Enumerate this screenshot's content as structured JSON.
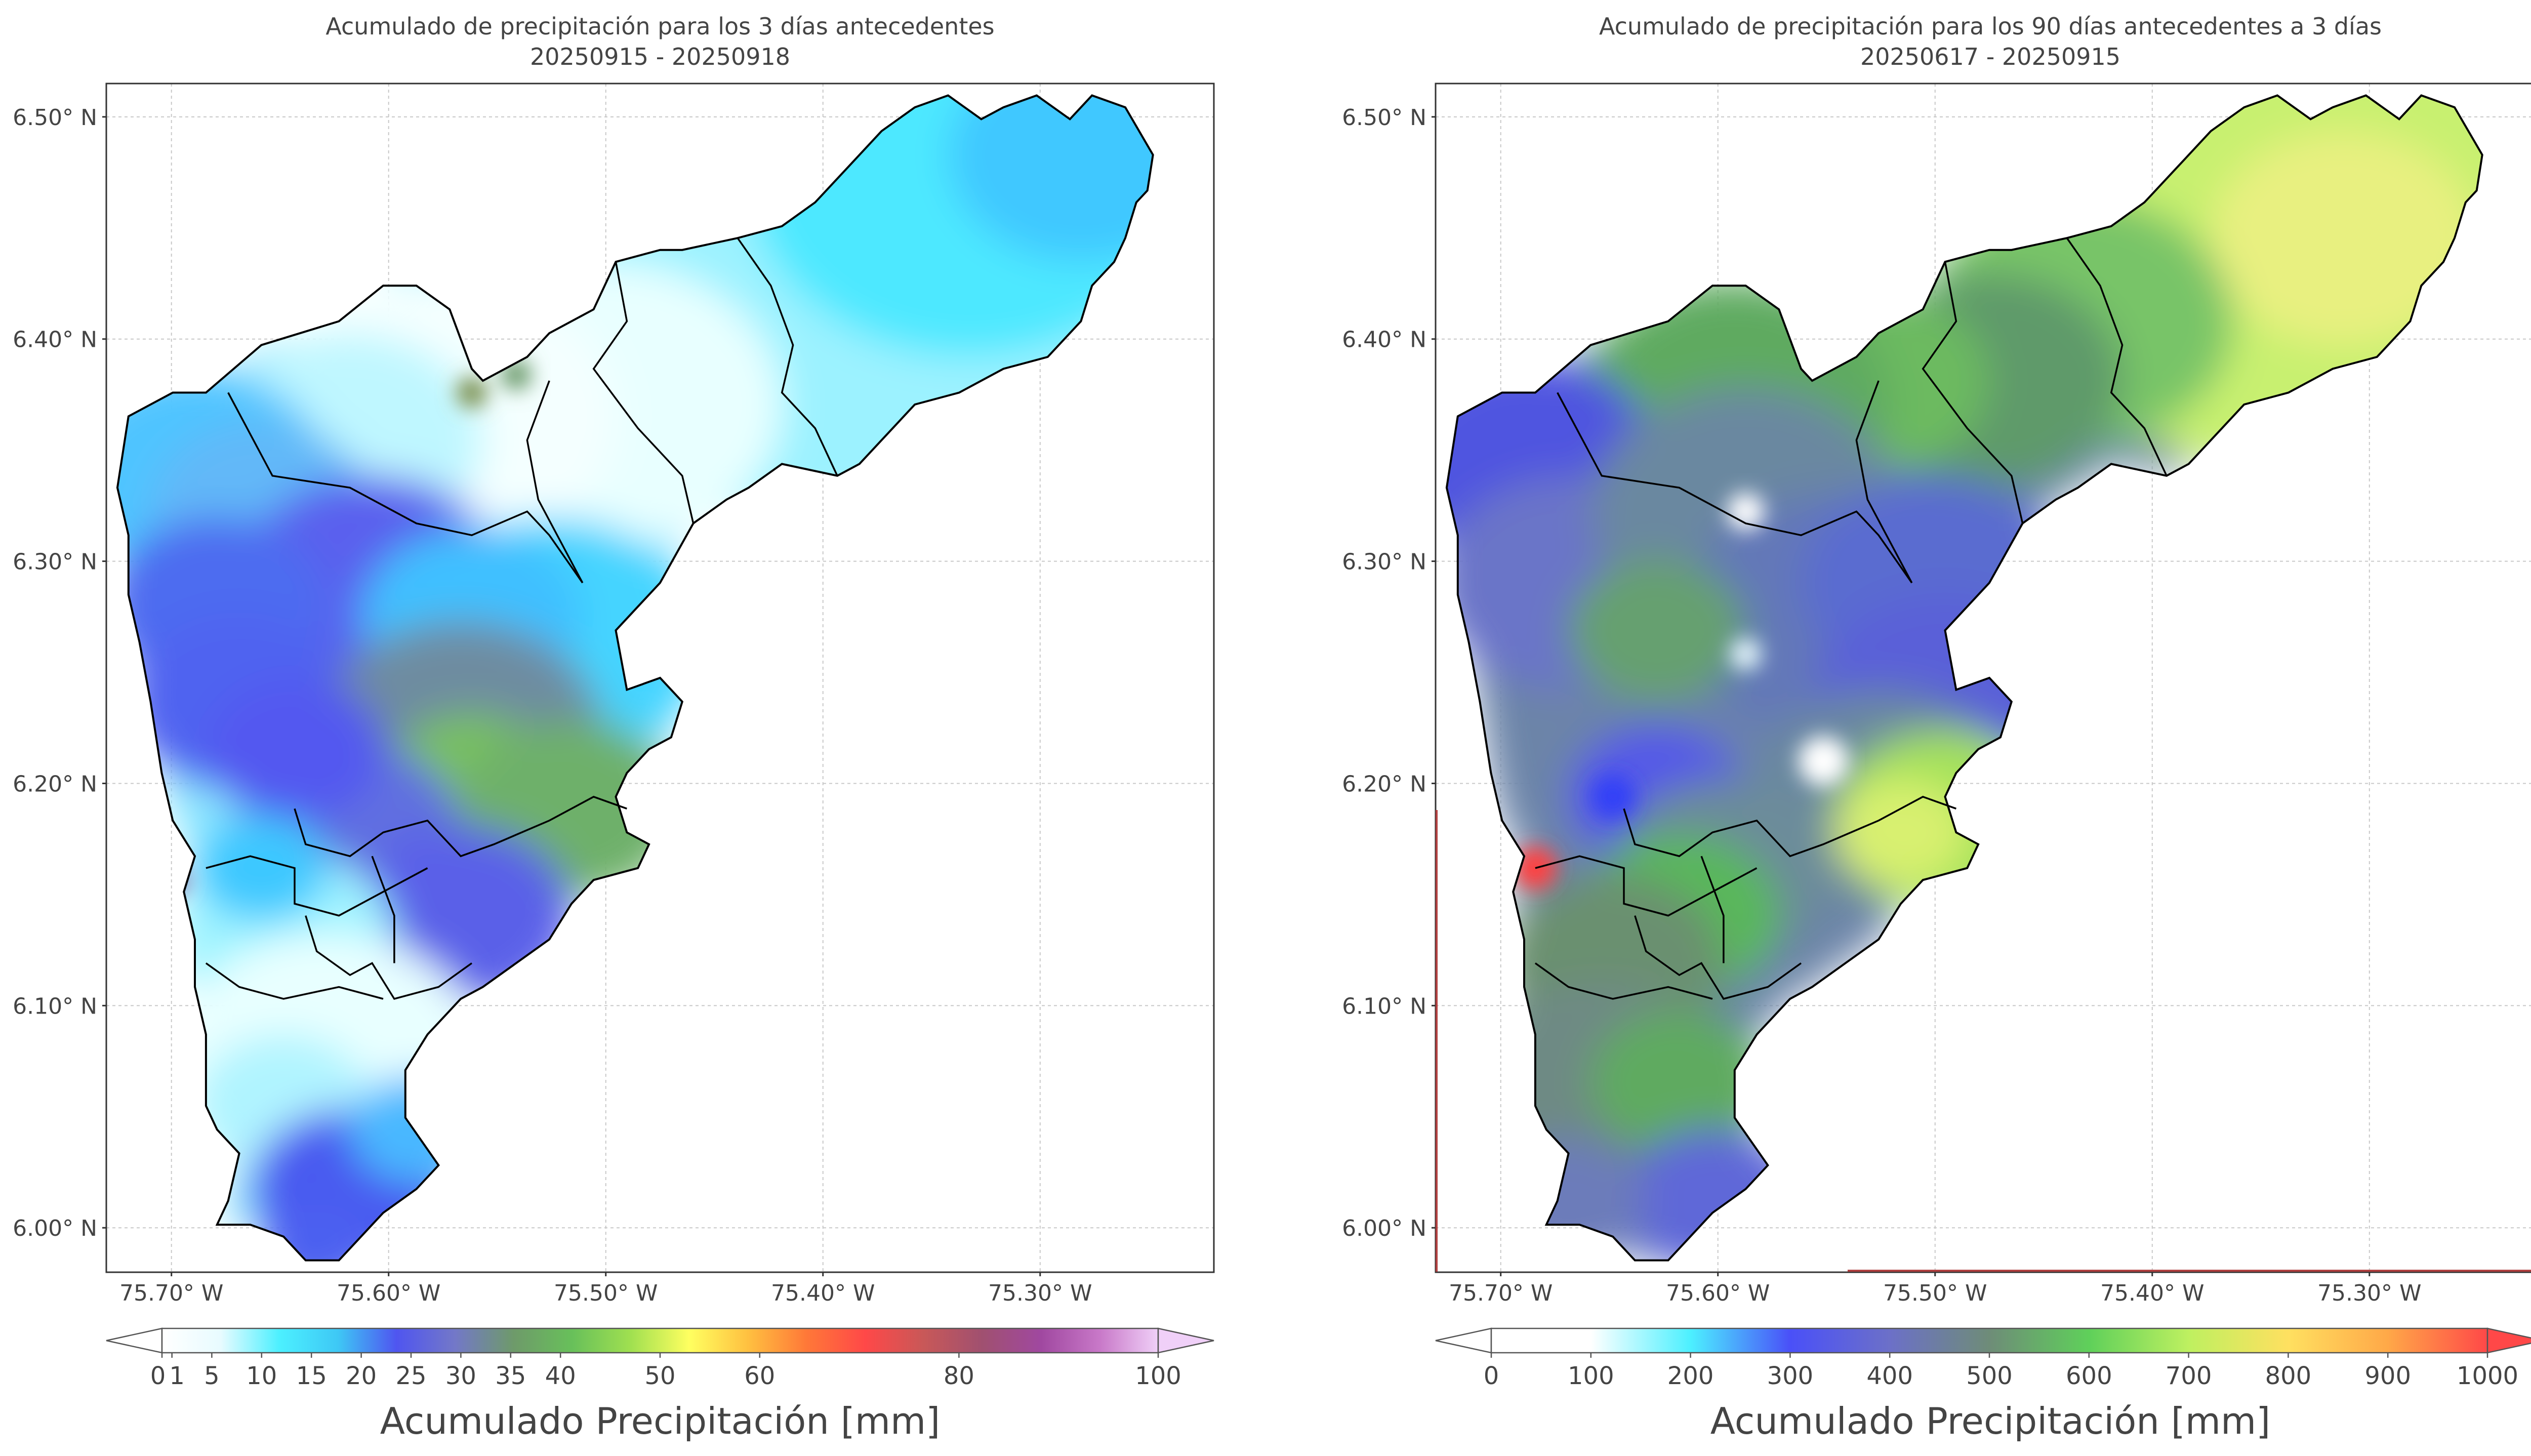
{
  "chart_data": [
    {
      "type": "heatmap",
      "title": "Acumulado de precipitación para los 3 días antecedentes",
      "subtitle": "20250915 - 20250918",
      "xlabel": "",
      "ylabel": "",
      "xlim": [
        -75.73,
        -75.22
      ],
      "ylim": [
        5.98,
        6.515
      ],
      "x_ticks": [
        -75.7,
        -75.6,
        -75.5,
        -75.4,
        -75.3
      ],
      "x_tick_labels": [
        "75.70° W",
        "75.60° W",
        "75.50° W",
        "75.40° W",
        "75.30° W"
      ],
      "y_ticks": [
        6.0,
        6.1,
        6.2,
        6.3,
        6.4,
        6.5
      ],
      "y_tick_labels": [
        "6.00° N",
        "6.10° N",
        "6.20° N",
        "6.30° N",
        "6.40° N",
        "6.50° N"
      ],
      "grid": true,
      "colorbar": {
        "label": "Acumulado Precipitación [mm]",
        "ticks": [
          0,
          1,
          5,
          10,
          15,
          20,
          25,
          30,
          35,
          40,
          50,
          60,
          80,
          100
        ],
        "tick_labels": [
          "0",
          "1",
          "5",
          "10",
          "15",
          "20",
          "25",
          "30",
          "35",
          "40",
          "50",
          "60",
          "80",
          "100"
        ],
        "extend": "both",
        "colors": [
          "#ffffff",
          "#e8fbff",
          "#4cf0ff",
          "#3ec8f5",
          "#4f55f0",
          "#7378c8",
          "#6e9a6a",
          "#68c05a",
          "#a0e050",
          "#ffff60",
          "#ffc040",
          "#ff7838",
          "#ff4848",
          "#c85858",
          "#a05070",
          "#a048a0",
          "#c878c8",
          "#f0d0f8"
        ]
      },
      "basin_values_mm": [
        {
          "zone": "northeast",
          "range": [
            2,
            6
          ]
        },
        {
          "zone": "north-central",
          "range": [
            0,
            4
          ]
        },
        {
          "zone": "west",
          "range": [
            8,
            14
          ]
        },
        {
          "zone": "central-south",
          "range": [
            18,
            24
          ]
        },
        {
          "zone": "south",
          "range": [
            1,
            6
          ]
        }
      ]
    },
    {
      "type": "heatmap",
      "title": "Acumulado de precipitación para los 90 días antecedentes a 3 días",
      "subtitle": "20250617 - 20250915",
      "xlabel": "",
      "ylabel": "",
      "xlim": [
        -75.73,
        -75.22
      ],
      "ylim": [
        5.98,
        6.515
      ],
      "x_ticks": [
        -75.7,
        -75.6,
        -75.5,
        -75.4,
        -75.3
      ],
      "x_tick_labels": [
        "75.70° W",
        "75.60° W",
        "75.50° W",
        "75.40° W",
        "75.30° W"
      ],
      "y_ticks": [
        6.0,
        6.1,
        6.2,
        6.3,
        6.4,
        6.5
      ],
      "y_tick_labels": [
        "6.00° N",
        "6.10° N",
        "6.20° N",
        "6.30° N",
        "6.40° N",
        "6.50° N"
      ],
      "grid": true,
      "colorbar": {
        "label": "Acumulado Precipitación [mm]",
        "ticks": [
          0,
          100,
          200,
          300,
          400,
          500,
          600,
          700,
          800,
          900,
          1000
        ],
        "tick_labels": [
          "0",
          "100",
          "200",
          "300",
          "400",
          "500",
          "600",
          "700",
          "800",
          "900",
          "1000"
        ],
        "extend": "both",
        "colors": [
          "#ffffff",
          "#ffffff",
          "#4cf0ff",
          "#4a50f8",
          "#6c70c8",
          "#6e8c78",
          "#5fd05a",
          "#bef060",
          "#ffe060",
          "#ffa848",
          "#ff4848"
        ]
      },
      "basin_values_mm": [
        {
          "zone": "northeast",
          "range": [
            620,
            700
          ]
        },
        {
          "zone": "north-central",
          "range": [
            480,
            560
          ]
        },
        {
          "zone": "west",
          "range": [
            380,
            460
          ]
        },
        {
          "zone": "central-south",
          "range": [
            450,
            650
          ]
        },
        {
          "zone": "south",
          "range": [
            420,
            520
          ]
        }
      ]
    }
  ]
}
